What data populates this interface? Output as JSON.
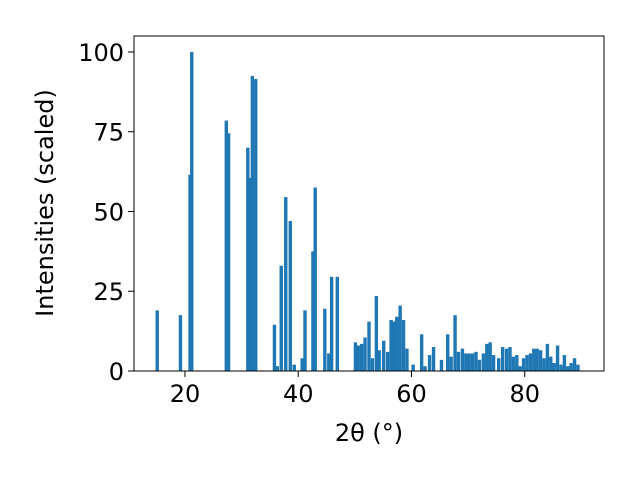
{
  "chart_data": {
    "type": "bar",
    "title": "",
    "xlabel": "2θ (°)",
    "ylabel": "Intensities (scaled)",
    "xlim": [
      11,
      94
    ],
    "ylim": [
      0,
      105
    ],
    "xticks": [
      20,
      40,
      60,
      80
    ],
    "yticks": [
      0,
      25,
      50,
      75,
      100
    ],
    "xtick_labels": [
      "20",
      "40",
      "60",
      "80"
    ],
    "ytick_labels": [
      "0",
      "25",
      "50",
      "75",
      "100"
    ],
    "bar_color": "#1f77b4",
    "grid": false,
    "bar_width": 0.6,
    "x": [
      15.1,
      19.2,
      20.9,
      21.2,
      27.3,
      27.7,
      31.1,
      31.5,
      31.9,
      32.5,
      35.8,
      36.3,
      37.0,
      37.8,
      38.6,
      39.3,
      40.7,
      41.2,
      42.6,
      43.0,
      44.7,
      45.4,
      45.9,
      46.9,
      50.1,
      50.6,
      51.2,
      51.8,
      52.5,
      53.1,
      53.8,
      54.3,
      55.1,
      55.8,
      56.4,
      56.9,
      57.4,
      58.0,
      58.6,
      59.2,
      60.3,
      61.8,
      62.4,
      63.2,
      63.9,
      65.3,
      66.4,
      67.0,
      67.7,
      68.3,
      69.0,
      69.6,
      70.2,
      70.8,
      71.4,
      72.0,
      72.7,
      73.3,
      73.9,
      74.5,
      75.4,
      76.1,
      76.8,
      77.4,
      78.0,
      78.6,
      79.2,
      79.8,
      80.4,
      81.0,
      81.6,
      82.2,
      82.8,
      83.4,
      84.0,
      84.6,
      85.2,
      85.8,
      86.4,
      87.0,
      87.6,
      88.2,
      88.8,
      89.4
    ],
    "values": [
      19,
      17.5,
      61.5,
      100,
      78.5,
      74.5,
      70,
      60.5,
      92.5,
      91.5,
      14.5,
      1.5,
      33,
      54.5,
      47,
      2,
      4,
      19,
      37.5,
      57.5,
      19.5,
      5.5,
      29.5,
      29.5,
      9,
      8,
      8.5,
      10.5,
      15.5,
      4,
      23.5,
      6.5,
      9.5,
      6,
      16,
      15.5,
      17,
      20.5,
      16,
      7,
      2,
      11.5,
      1.5,
      5,
      7.5,
      3.5,
      11.5,
      4.5,
      17.5,
      6,
      7,
      5.5,
      5.5,
      5.5,
      6,
      3.5,
      5.5,
      8.5,
      9,
      5,
      4,
      7.5,
      7,
      7.5,
      4.5,
      5,
      1.5,
      4,
      5,
      5.5,
      7,
      7,
      6.5,
      4,
      8.5,
      4.5,
      2.5,
      8,
      2,
      5,
      1.5,
      2.5,
      4,
      2
    ]
  }
}
